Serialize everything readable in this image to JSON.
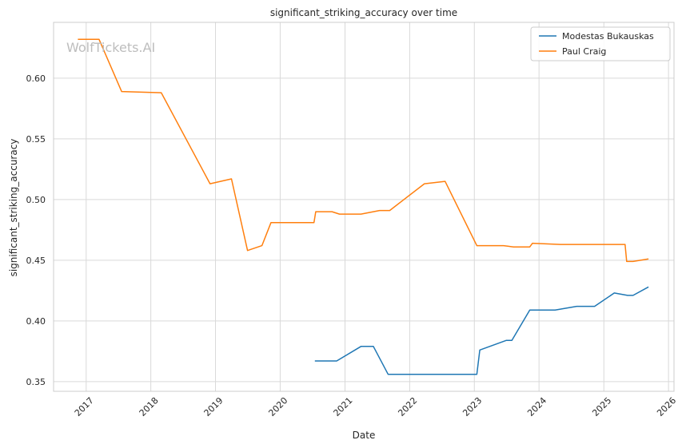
{
  "chart_data": {
    "type": "line",
    "title": "significant_striking_accuracy over time",
    "xlabel": "Date",
    "ylabel": "significant_striking_accuracy",
    "watermark": "WolfTickets.AI",
    "xlim": [
      "2016-07-01",
      "2026-02-01"
    ],
    "ylim": [
      0.342,
      0.646
    ],
    "x_ticks": [
      "2017-01-01",
      "2018-01-01",
      "2019-01-01",
      "2020-01-01",
      "2021-01-01",
      "2022-01-01",
      "2023-01-01",
      "2024-01-01",
      "2025-01-01",
      "2026-01-01"
    ],
    "x_tick_labels": [
      "2017",
      "2018",
      "2019",
      "2020",
      "2021",
      "2022",
      "2023",
      "2024",
      "2025",
      "2026"
    ],
    "y_ticks": [
      0.35,
      0.4,
      0.45,
      0.5,
      0.55,
      0.6
    ],
    "y_tick_labels": [
      "0.35",
      "0.40",
      "0.45",
      "0.50",
      "0.55",
      "0.60"
    ],
    "grid": true,
    "legend_position": "top-right",
    "series": [
      {
        "name": "Modestas Bukauskas",
        "color": "#1f77b4",
        "points": [
          [
            "2020-07-15",
            0.367
          ],
          [
            "2020-11-15",
            0.367
          ],
          [
            "2021-04-01",
            0.379
          ],
          [
            "2021-06-10",
            0.379
          ],
          [
            "2021-09-01",
            0.356
          ],
          [
            "2023-01-15",
            0.356
          ],
          [
            "2023-02-01",
            0.376
          ],
          [
            "2023-07-01",
            0.384
          ],
          [
            "2023-08-01",
            0.384
          ],
          [
            "2023-11-10",
            0.409
          ],
          [
            "2024-04-01",
            0.409
          ],
          [
            "2024-08-01",
            0.412
          ],
          [
            "2024-11-10",
            0.412
          ],
          [
            "2025-03-01",
            0.423
          ],
          [
            "2025-05-15",
            0.421
          ],
          [
            "2025-06-15",
            0.421
          ],
          [
            "2025-09-10",
            0.428
          ]
        ]
      },
      {
        "name": "Paul Craig",
        "color": "#ff7f0e",
        "points": [
          [
            "2016-11-15",
            0.632
          ],
          [
            "2017-03-15",
            0.632
          ],
          [
            "2017-07-20",
            0.589
          ],
          [
            "2018-03-01",
            0.588
          ],
          [
            "2018-12-01",
            0.513
          ],
          [
            "2019-04-01",
            0.517
          ],
          [
            "2019-07-01",
            0.458
          ],
          [
            "2019-09-20",
            0.462
          ],
          [
            "2019-11-10",
            0.481
          ],
          [
            "2020-07-10",
            0.481
          ],
          [
            "2020-07-20",
            0.49
          ],
          [
            "2020-10-20",
            0.49
          ],
          [
            "2020-12-01",
            0.488
          ],
          [
            "2021-04-01",
            0.488
          ],
          [
            "2021-07-15",
            0.491
          ],
          [
            "2021-09-10",
            0.491
          ],
          [
            "2022-03-25",
            0.513
          ],
          [
            "2022-07-20",
            0.515
          ],
          [
            "2023-01-15",
            0.462
          ],
          [
            "2023-06-15",
            0.462
          ],
          [
            "2023-08-10",
            0.461
          ],
          [
            "2023-11-10",
            0.461
          ],
          [
            "2023-11-25",
            0.464
          ],
          [
            "2024-05-01",
            0.463
          ],
          [
            "2024-11-10",
            0.463
          ],
          [
            "2025-05-01",
            0.463
          ],
          [
            "2025-05-10",
            0.449
          ],
          [
            "2025-06-15",
            0.449
          ],
          [
            "2025-09-10",
            0.451
          ]
        ]
      }
    ]
  }
}
